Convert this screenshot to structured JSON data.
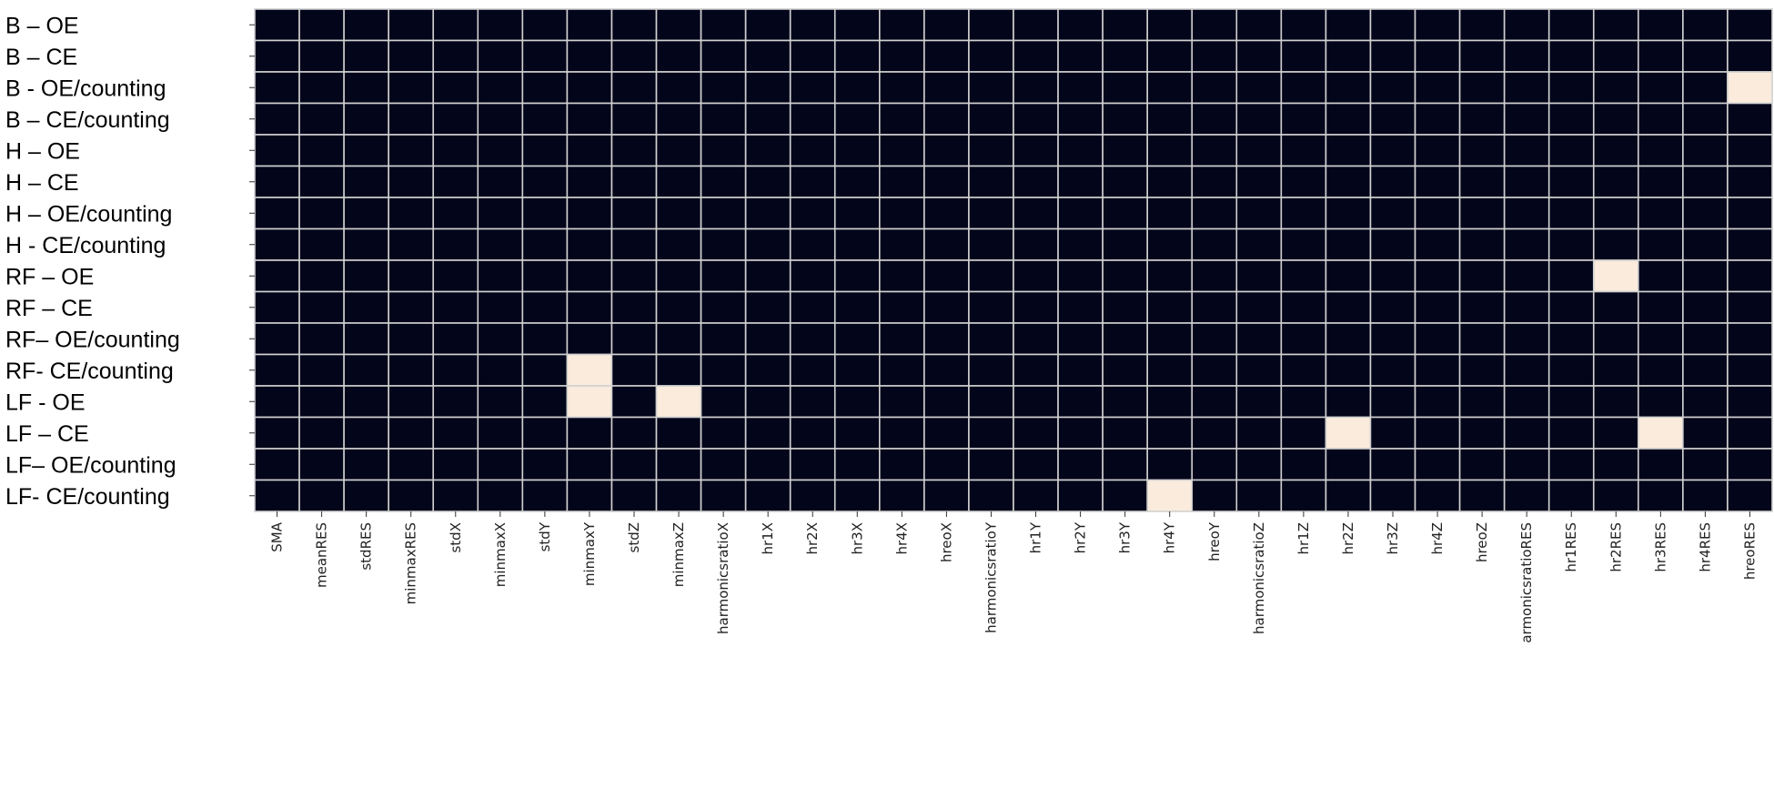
{
  "chart_data": {
    "type": "heatmap",
    "title": "",
    "xlabel": "",
    "ylabel": "",
    "rows": [
      "B – OE",
      "B – CE",
      "B - OE/counting",
      "B – CE/counting",
      "H – OE",
      "H – CE",
      "H – OE/counting",
      "H -  CE/counting",
      "RF – OE",
      "RF – CE",
      "RF– OE/counting",
      "RF- CE/counting",
      "LF - OE",
      "LF – CE",
      "LF– OE/counting",
      "LF- CE/counting"
    ],
    "columns": [
      "SMA",
      "meanRES",
      "stdRES",
      "minmaxRES",
      "stdX",
      "minmaxX",
      "stdY",
      "minmaxY",
      "stdZ",
      "minmaxZ",
      "harmonicsratioX",
      "hr1X",
      "hr2X",
      "hr3X",
      "hr4X",
      "hreoX",
      "harmonicsratioY",
      "hr1Y",
      "hr2Y",
      "hr3Y",
      "hr4Y",
      "hreoY",
      "harmonicsratioZ",
      "hr1Z",
      "hr2Z",
      "hr3Z",
      "hr4Z",
      "hreoZ",
      "armonicsratioRES",
      "hr1RES",
      "hr2RES",
      "hr3RES",
      "hr4RES",
      "hreoRES"
    ],
    "highlighted_cells": [
      {
        "row": "B - OE/counting",
        "column": "hreoRES"
      },
      {
        "row": "RF – OE",
        "column": "hr2RES"
      },
      {
        "row": "RF- CE/counting",
        "column": "minmaxY"
      },
      {
        "row": "LF - OE",
        "column": "minmaxY"
      },
      {
        "row": "LF - OE",
        "column": "minmaxZ"
      },
      {
        "row": "LF – CE",
        "column": "hr2Z"
      },
      {
        "row": "LF – CE",
        "column": "hr3RES"
      },
      {
        "row": "LF- CE/counting",
        "column": "hr4Y"
      }
    ],
    "colors": {
      "low": "#03051a",
      "high": "#faebdd",
      "grid": "#d0d0d0"
    },
    "grid": true,
    "legend": "none"
  }
}
